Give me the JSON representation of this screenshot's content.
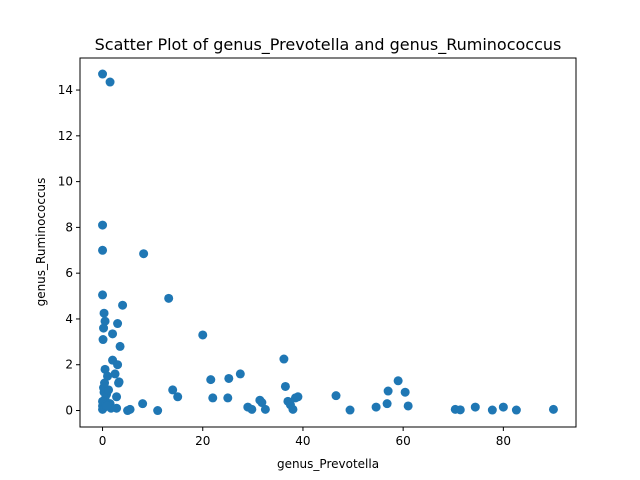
{
  "chart_data": {
    "type": "scatter",
    "title": "Scatter Plot of genus_Prevotella and genus_Ruminococcus",
    "xlabel": "genus_Prevotella",
    "ylabel": "genus_Ruminococcus",
    "xlim": [
      -4.5,
      94.5
    ],
    "ylim": [
      -0.72,
      15.4
    ],
    "xticks": [
      0,
      20,
      40,
      60,
      80
    ],
    "yticks": [
      0,
      2,
      4,
      6,
      8,
      10,
      12,
      14
    ],
    "grid": false,
    "marker_color": "#1f77b4",
    "x": [
      0,
      1.5,
      0,
      0,
      0,
      8.2,
      4,
      13.2,
      3,
      3.5,
      2,
      20,
      0.3,
      0.5,
      0.2,
      0.1,
      2,
      3,
      3.3,
      36.2,
      0.5,
      1,
      2.5,
      3.2,
      14,
      15,
      1.5,
      2.8,
      0.8,
      0.5,
      0.3,
      8,
      11,
      5,
      5.5,
      2.8,
      0,
      0,
      0,
      0.4,
      0.2,
      0.6,
      1.2,
      1.7,
      0.9,
      0.4,
      21.6,
      22,
      25.2,
      25,
      27.5,
      29,
      29.8,
      31.4,
      31.8,
      32.5,
      36.5,
      37,
      37.5,
      38,
      38.5,
      39,
      46.6,
      49.4,
      54.6,
      56.8,
      57,
      59,
      60.4,
      61,
      70.4,
      71.4,
      74.4,
      77.8,
      80,
      82.6,
      90
    ],
    "y": [
      14.7,
      14.35,
      8.1,
      7,
      5.05,
      6.85,
      4.6,
      4.9,
      3.8,
      2.8,
      3.35,
      3.3,
      4.25,
      3.9,
      3.6,
      3.1,
      2.2,
      2,
      1.25,
      2.25,
      1.8,
      1.5,
      1.6,
      1.2,
      0.9,
      0.6,
      0.3,
      0.6,
      0.7,
      0.5,
      0.8,
      0.3,
      0,
      0,
      0.05,
      0.1,
      0.2,
      0.4,
      0.05,
      0.15,
      1,
      0.25,
      0.9,
      0.1,
      0.2,
      1.2,
      1.35,
      0.55,
      1.4,
      0.55,
      1.6,
      0.15,
      0.05,
      0.45,
      0.35,
      0.05,
      1.05,
      0.4,
      0.25,
      0.05,
      0.55,
      0.6,
      0.65,
      0.02,
      0.15,
      0.3,
      0.85,
      1.3,
      0.8,
      0.2,
      0.05,
      0.03,
      0.15,
      0.02,
      0.15,
      0.02,
      0.05
    ]
  }
}
